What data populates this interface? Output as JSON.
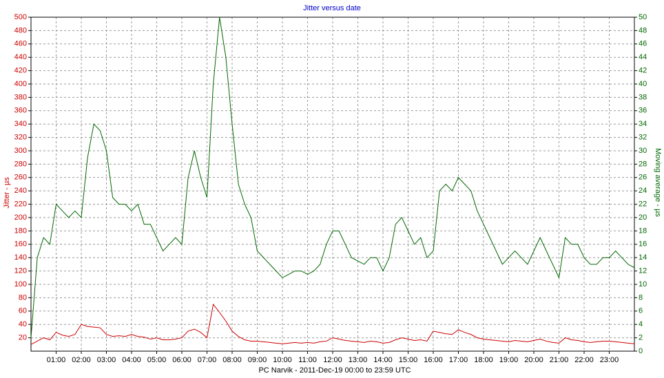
{
  "chart_data": {
    "type": "line",
    "title": "Jitter versus date",
    "x_label": "PC Narvik  -  2011-Dec-19 00:00  to  23:59 UTC",
    "y_label": "Jitter - µs",
    "y2_label": "Moving average - µs",
    "x": [
      0,
      0.25,
      0.5,
      0.75,
      1,
      1.25,
      1.5,
      1.75,
      2,
      2.25,
      2.5,
      2.75,
      3,
      3.25,
      3.5,
      3.75,
      4,
      4.25,
      4.5,
      4.75,
      5,
      5.25,
      5.5,
      5.75,
      6,
      6.25,
      6.5,
      6.75,
      7,
      7.25,
      7.5,
      7.75,
      8,
      8.25,
      8.5,
      8.75,
      9,
      9.25,
      9.5,
      9.75,
      10,
      10.25,
      10.5,
      10.75,
      11,
      11.25,
      11.5,
      11.75,
      12,
      12.25,
      12.5,
      12.75,
      13,
      13.25,
      13.5,
      13.75,
      14,
      14.25,
      14.5,
      14.75,
      15,
      15.25,
      15.5,
      15.75,
      16,
      16.25,
      16.5,
      16.75,
      17,
      17.25,
      17.5,
      17.75,
      18,
      18.25,
      18.5,
      18.75,
      19,
      19.25,
      19.5,
      19.75,
      20,
      20.25,
      20.5,
      20.75,
      21,
      21.25,
      21.5,
      21.75,
      22,
      22.25,
      22.5,
      22.75,
      23,
      23.25,
      23.5,
      23.75,
      24
    ],
    "xlim": [
      0,
      24
    ],
    "xticks": [
      {
        "value": 1,
        "label": "01:00"
      },
      {
        "value": 2,
        "label": "02:00"
      },
      {
        "value": 3,
        "label": "03:00"
      },
      {
        "value": 4,
        "label": "04:00"
      },
      {
        "value": 5,
        "label": "05:00"
      },
      {
        "value": 6,
        "label": "06:00"
      },
      {
        "value": 7,
        "label": "07:00"
      },
      {
        "value": 8,
        "label": "08:00"
      },
      {
        "value": 9,
        "label": "09:00"
      },
      {
        "value": 10,
        "label": "10:00"
      },
      {
        "value": 11,
        "label": "11:00"
      },
      {
        "value": 12,
        "label": "12:00"
      },
      {
        "value": 13,
        "label": "13:00"
      },
      {
        "value": 14,
        "label": "14:00"
      },
      {
        "value": 15,
        "label": "15:00"
      },
      {
        "value": 16,
        "label": "16:00"
      },
      {
        "value": 17,
        "label": "17:00"
      },
      {
        "value": 18,
        "label": "18:00"
      },
      {
        "value": 19,
        "label": "19:00"
      },
      {
        "value": 20,
        "label": "20:00"
      },
      {
        "value": 21,
        "label": "21:00"
      },
      {
        "value": 22,
        "label": "22:00"
      },
      {
        "value": 23,
        "label": "23:00"
      }
    ],
    "ylim": [
      0,
      500
    ],
    "yticks": [
      20,
      40,
      60,
      80,
      100,
      120,
      140,
      160,
      180,
      200,
      220,
      240,
      260,
      280,
      300,
      320,
      340,
      360,
      380,
      400,
      420,
      440,
      460,
      480,
      500
    ],
    "y2lim": [
      0,
      50
    ],
    "y2ticks": [
      0,
      2,
      4,
      6,
      8,
      10,
      12,
      14,
      16,
      18,
      20,
      22,
      24,
      26,
      28,
      30,
      32,
      34,
      36,
      38,
      40,
      42,
      44,
      46,
      48,
      50
    ],
    "grid": true,
    "series": [
      {
        "name": "Jitter",
        "color": "#cc0000",
        "values": [
          10,
          15,
          20,
          17,
          28,
          24,
          22,
          25,
          40,
          37,
          36,
          35,
          25,
          22,
          23,
          22,
          25,
          22,
          21,
          18,
          20,
          17,
          17,
          18,
          20,
          30,
          33,
          28,
          20,
          70,
          58,
          45,
          30,
          22,
          17,
          15,
          15,
          14,
          13,
          12,
          11,
          12,
          13,
          12,
          13,
          12,
          14,
          15,
          20,
          18,
          16,
          15,
          14,
          13,
          15,
          14,
          12,
          13,
          17,
          20,
          18,
          16,
          17,
          15,
          30,
          28,
          26,
          25,
          32,
          28,
          25,
          20,
          18,
          17,
          16,
          15,
          14,
          16,
          15,
          14,
          16,
          18,
          15,
          13,
          12,
          20,
          17,
          16,
          14,
          13,
          14,
          15,
          15,
          14,
          13,
          12,
          11
        ]
      },
      {
        "name": "Moving average",
        "color": "#006600",
        "axis": "y2",
        "values": [
          2,
          14,
          17,
          16,
          22,
          21,
          20,
          21,
          20,
          29,
          34,
          33,
          30,
          23,
          22,
          22,
          21,
          22,
          19,
          19,
          17,
          15,
          16,
          17,
          16,
          26,
          30,
          26,
          23,
          40,
          50,
          44,
          34,
          25,
          22,
          20,
          15,
          14,
          13,
          12,
          11,
          11.5,
          12,
          12,
          11.5,
          12,
          13,
          16,
          18,
          18,
          16,
          14,
          13.5,
          13,
          14,
          14,
          12,
          14,
          19,
          20,
          18,
          16,
          17,
          14,
          15,
          24,
          25,
          24,
          26,
          25,
          24,
          21,
          19,
          17,
          15,
          13,
          14,
          15,
          14,
          13,
          15,
          17,
          15,
          13,
          11,
          17,
          16,
          16,
          14,
          13,
          13,
          14,
          14,
          15,
          14,
          13,
          12.5
        ]
      }
    ]
  }
}
